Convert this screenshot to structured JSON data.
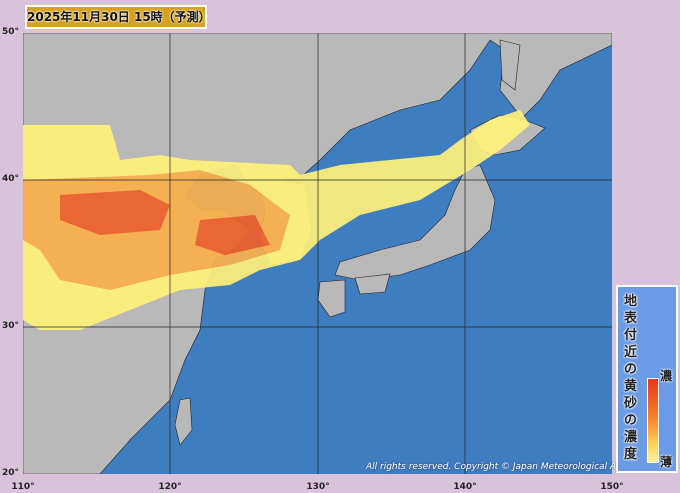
{
  "title": "2025年11月30日 15時（予測）",
  "map": {
    "lat_labels": [
      "50°",
      "40°",
      "30°",
      "20°"
    ],
    "lon_labels": [
      "110°",
      "120°",
      "130°",
      "140°",
      "150°"
    ],
    "colors": {
      "ocean": "#3f7dc1",
      "land": "#b9b9b9",
      "background": "#d9c3da"
    }
  },
  "legend": {
    "title": "地表付近の黄砂の濃度",
    "high_label": "濃",
    "low_label": "薄"
  },
  "copyright": "All rights reserved. Copyright © Japan Meteorological Agency"
}
